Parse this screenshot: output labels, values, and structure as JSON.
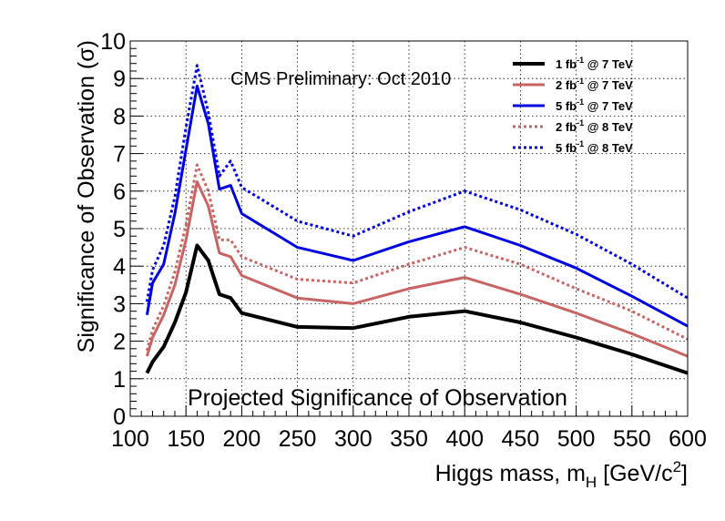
{
  "chart_data": {
    "type": "line",
    "title": "Projected Significance of Observation",
    "annotation": "CMS Preliminary: Oct 2010",
    "xlabel": "Higgs mass, m",
    "xlabel_sub": "H",
    "xlabel_unit_open": " [GeV/c",
    "xlabel_unit_sup": "2",
    "xlabel_unit_close": "]",
    "ylabel": "Significance of Observation (σ)",
    "xlim": [
      100,
      600
    ],
    "ylim": [
      0,
      10
    ],
    "grid": true,
    "legend_position": "top-right",
    "x_ticks": [
      "100",
      "150",
      "200",
      "250",
      "300",
      "350",
      "400",
      "450",
      "500",
      "550",
      "600"
    ],
    "y_ticks": [
      "0",
      "1",
      "2",
      "3",
      "4",
      "5",
      "6",
      "7",
      "8",
      "9",
      "10"
    ],
    "x": [
      115,
      120,
      130,
      140,
      150,
      160,
      170,
      180,
      190,
      200,
      250,
      300,
      350,
      400,
      450,
      500,
      550,
      600
    ],
    "series": [
      {
        "legend_main": "1 fb",
        "legend_sup": "-1",
        "legend_rest": " @ 7 TeV",
        "color": "#000000",
        "style": "solid",
        "values": [
          1.15,
          1.45,
          1.85,
          2.5,
          3.3,
          4.55,
          4.15,
          3.25,
          3.15,
          2.75,
          2.38,
          2.35,
          2.65,
          2.8,
          2.5,
          2.1,
          1.65,
          1.15
        ]
      },
      {
        "legend_main": "2 fb",
        "legend_sup": "-1",
        "legend_rest": " @ 7 TeV",
        "color": "#c86464",
        "style": "solid",
        "values": [
          1.6,
          2.1,
          2.7,
          3.5,
          4.7,
          6.25,
          5.6,
          4.35,
          4.25,
          3.75,
          3.15,
          3.0,
          3.4,
          3.7,
          3.25,
          2.75,
          2.2,
          1.6
        ]
      },
      {
        "legend_main": "5 fb",
        "legend_sup": "-1",
        "legend_rest": " @ 7 TeV",
        "color": "#0000e0",
        "style": "solid",
        "values": [
          2.7,
          3.55,
          4.05,
          5.4,
          7.1,
          8.8,
          7.8,
          6.05,
          6.15,
          5.4,
          4.5,
          4.15,
          4.65,
          5.05,
          4.55,
          3.95,
          3.2,
          2.4
        ]
      },
      {
        "legend_main": "2 fb",
        "legend_sup": "-1",
        "legend_rest": " @ 8 TeV",
        "color": "#c86464",
        "style": "dotted",
        "values": [
          1.75,
          2.3,
          2.95,
          3.85,
          5.1,
          6.7,
          6.0,
          4.7,
          4.7,
          4.25,
          3.65,
          3.55,
          4.05,
          4.5,
          4.05,
          3.4,
          2.8,
          2.05
        ]
      },
      {
        "legend_main": "5 fb",
        "legend_sup": "-1",
        "legend_rest": " @ 8 TeV",
        "color": "#0000e0",
        "style": "dotted",
        "values": [
          3.05,
          3.9,
          4.55,
          5.85,
          7.7,
          9.35,
          8.1,
          6.4,
          6.8,
          6.1,
          5.2,
          4.8,
          5.45,
          6.0,
          5.5,
          4.85,
          4.05,
          3.15
        ]
      }
    ]
  }
}
